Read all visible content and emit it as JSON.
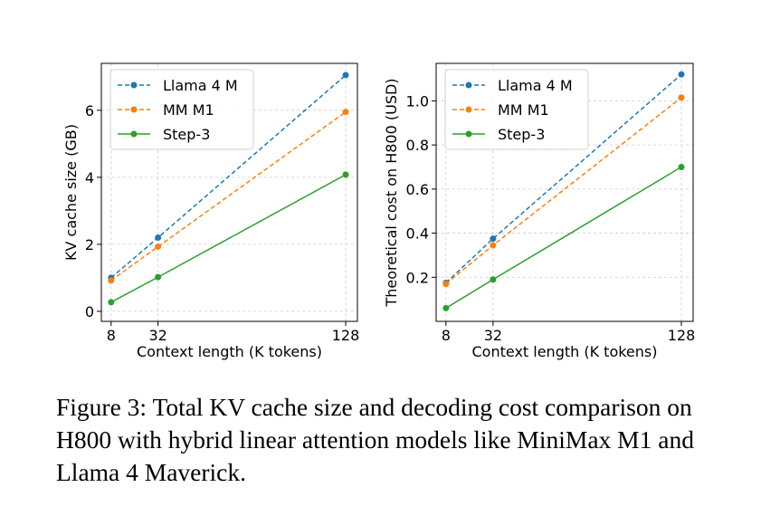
{
  "chart_data": [
    {
      "type": "line",
      "x": [
        8,
        32,
        128
      ],
      "xticks": [
        8,
        32,
        128
      ],
      "yticks": [
        0,
        2,
        4,
        6
      ],
      "xlim": [
        3,
        134
      ],
      "ylim": [
        -0.3,
        7.4
      ],
      "xlabel": "Context length (K tokens)",
      "ylabel": "KV cache size (GB)",
      "grid": true,
      "legend": "upper-left",
      "series": [
        {
          "name": "Llama 4 M",
          "values": [
            1.0,
            2.2,
            7.05
          ],
          "color": "#1f77b4",
          "dash": true
        },
        {
          "name": "MM M1",
          "values": [
            0.92,
            1.93,
            5.95
          ],
          "color": "#ff7f0e",
          "dash": true
        },
        {
          "name": "Step-3",
          "values": [
            0.27,
            1.02,
            4.08
          ],
          "color": "#2ca02c",
          "dash": false
        }
      ]
    },
    {
      "type": "line",
      "x": [
        8,
        32,
        128
      ],
      "xticks": [
        8,
        32,
        128
      ],
      "yticks": [
        0.2,
        0.4,
        0.6,
        0.8,
        1.0
      ],
      "xlim": [
        3,
        134
      ],
      "ylim": [
        0.0,
        1.17
      ],
      "xlabel": "Context length (K tokens)",
      "ylabel": "Theoretical cost on H800 (USD)",
      "grid": true,
      "legend": "upper-left",
      "series": [
        {
          "name": "Llama 4 M",
          "values": [
            0.175,
            0.375,
            1.12
          ],
          "color": "#1f77b4",
          "dash": true
        },
        {
          "name": "MM M1",
          "values": [
            0.17,
            0.345,
            1.015
          ],
          "color": "#ff7f0e",
          "dash": true
        },
        {
          "name": "Step-3",
          "values": [
            0.06,
            0.19,
            0.7
          ],
          "color": "#2ca02c",
          "dash": false
        }
      ]
    }
  ],
  "caption": "Figure 3: Total KV cache size and decoding cost comparison on H800 with hybrid linear attention models like MiniMax M1 and Llama 4 Maverick."
}
